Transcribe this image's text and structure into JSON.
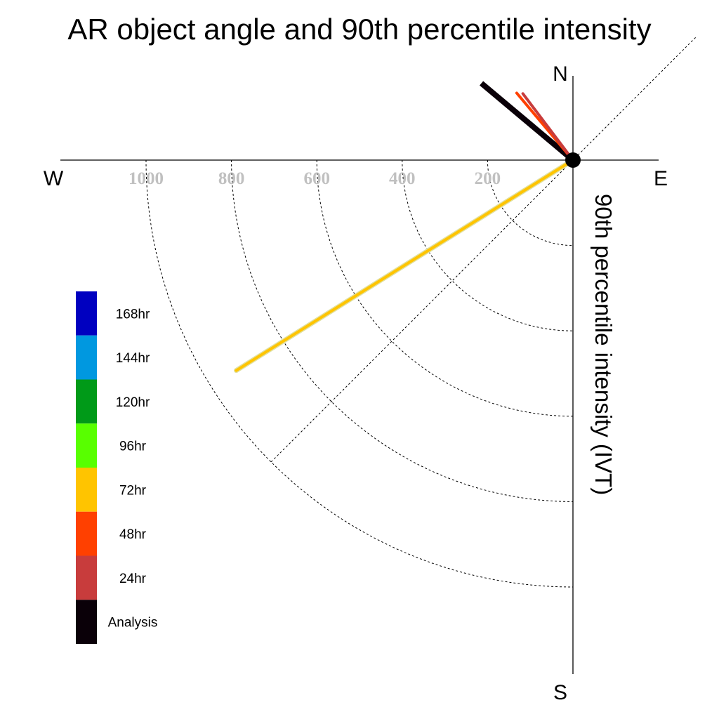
{
  "chart_data": {
    "type": "polar-vector",
    "title": "AR object angle and 90th percentile intensity",
    "ylabel": "90th percentile intensity (IVT)",
    "compass": {
      "north": "N",
      "south": "S",
      "east": "E",
      "west": "W"
    },
    "radial_ticks": [
      {
        "value": 200,
        "label": "200"
      },
      {
        "value": 400,
        "label": "400"
      },
      {
        "value": 600,
        "label": "600"
      },
      {
        "value": 800,
        "label": "800"
      },
      {
        "value": 1000,
        "label": "1000"
      }
    ],
    "radial_range": [
      0,
      1200
    ],
    "grid": true,
    "legend_position": "left",
    "legend": [
      {
        "name": "168hr",
        "color": "#0000c0"
      },
      {
        "name": "144hr",
        "color": "#0098e0"
      },
      {
        "name": "120hr",
        "color": "#009a18"
      },
      {
        "name": "96hr",
        "color": "#58ff00"
      },
      {
        "name": "72hr",
        "color": "#ffc400"
      },
      {
        "name": "48hr",
        "color": "#ff4000"
      },
      {
        "name": "24hr",
        "color": "#c83c3c"
      },
      {
        "name": "Analysis",
        "color": "#0a0008"
      }
    ],
    "vectors": [
      {
        "series": "Analysis",
        "color": "#0a0008",
        "direction_deg": 310,
        "intensity": 280,
        "width": 8
      },
      {
        "series": "48hr",
        "color": "#ff4000",
        "direction_deg": 320,
        "intensity": 205,
        "width": 4
      },
      {
        "series": "24hr",
        "color": "#c83c3c",
        "direction_deg": 323,
        "intensity": 195,
        "width": 4
      },
      {
        "series": "72hr",
        "color": "#ffc400",
        "direction_deg": 238,
        "intensity": 930,
        "width": 4
      }
    ]
  }
}
